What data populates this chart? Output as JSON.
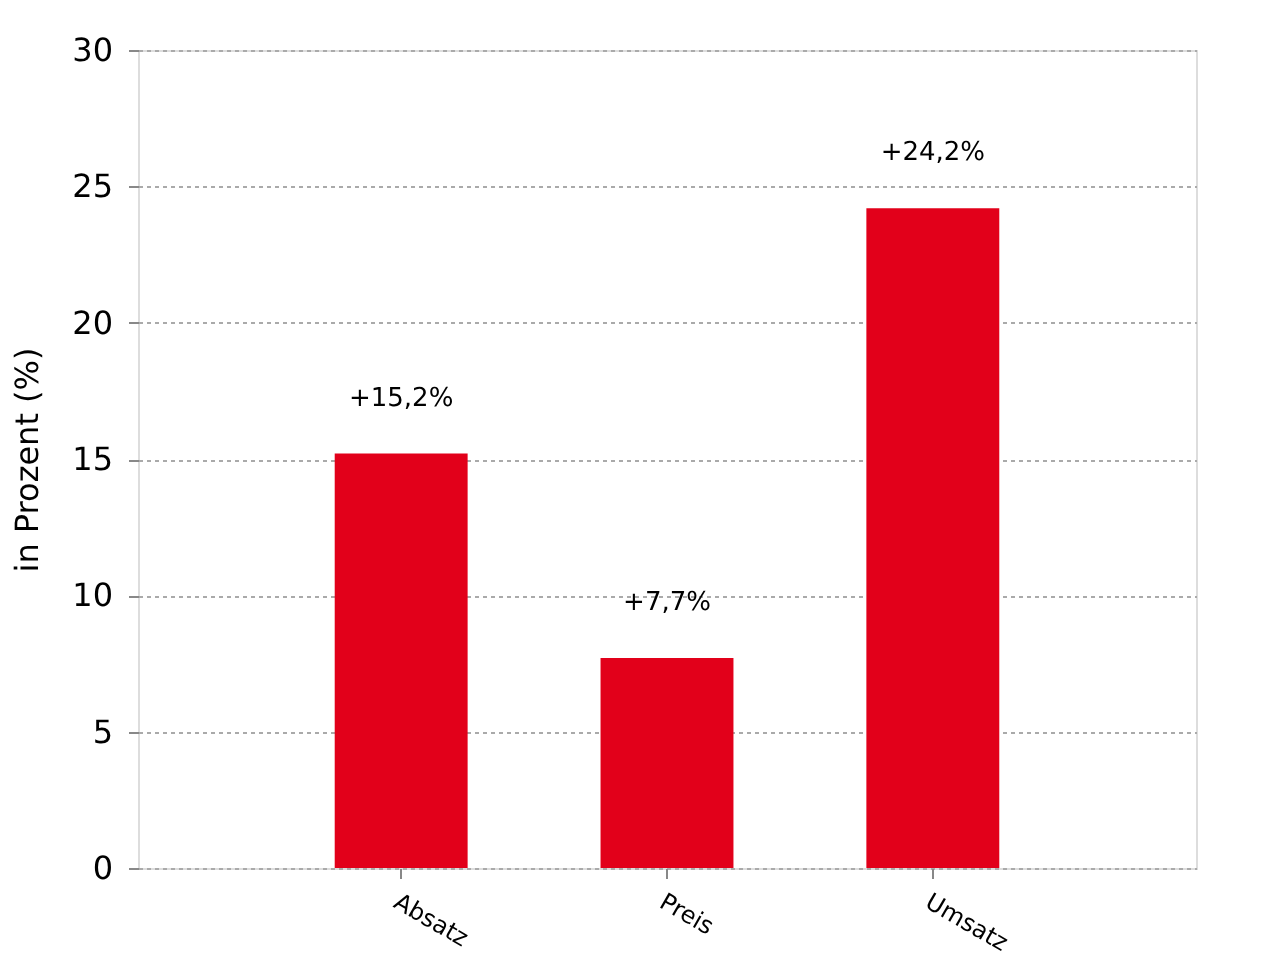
{
  "chart_data": {
    "type": "bar",
    "ylabel": "in Prozent (%)",
    "categories": [
      "Absatz",
      "Preis",
      "Umsatz"
    ],
    "values": [
      15.2,
      7.7,
      24.2
    ],
    "value_labels": [
      "+15,2%",
      "+7,7%",
      "+24,2%"
    ],
    "color": "#e2001a",
    "ylim": [
      0,
      30
    ],
    "yticks": [
      0,
      5,
      10,
      15,
      20,
      25,
      30
    ],
    "grid": "y"
  }
}
